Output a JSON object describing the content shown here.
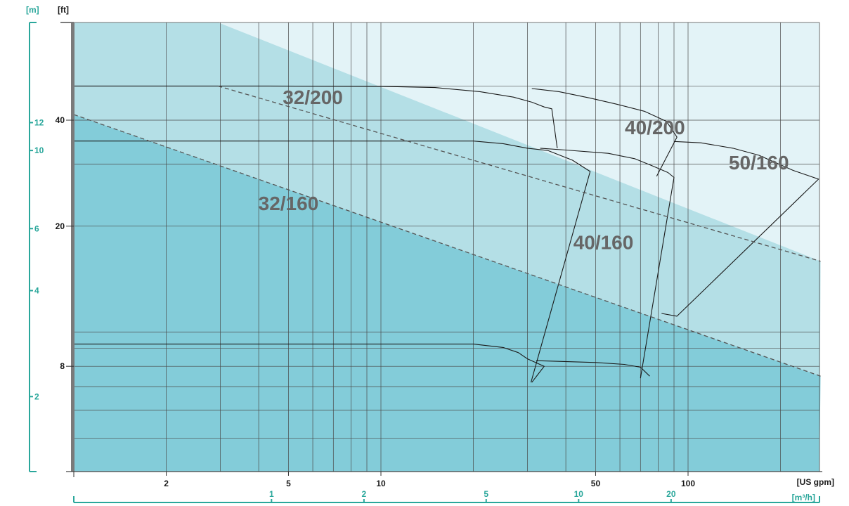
{
  "colors": {
    "zone_low": "#83ccd9",
    "zone_mid": "#b4dfe6",
    "zone_high": "#e3f3f7",
    "grid": "#4a4a4a",
    "curve": "#1a1a1a",
    "boundary": "#555555",
    "teal_axis": "#2aa79b",
    "axis_bar": "#7a7a7a",
    "label_text": "#666666",
    "tick_text": "#1a1a1a"
  },
  "chart_data": {
    "type": "line",
    "x_scale": "log",
    "y_scale": "log",
    "grid": true,
    "legend": "none",
    "x_primary": {
      "unit_label": "[US gpm]",
      "range": [
        1,
        270
      ],
      "ticks": [
        2,
        5,
        10,
        50,
        100
      ]
    },
    "x_secondary": {
      "unit_label": "[m³/h]",
      "ticks": [
        1,
        2,
        5,
        10,
        20
      ]
    },
    "y_primary": {
      "unit_label": "[ft]",
      "range": [
        4,
        50
      ],
      "ticks": [
        8,
        20,
        40
      ]
    },
    "y_secondary": {
      "unit_label": "[m]",
      "ticks": [
        2,
        4,
        6,
        10,
        12
      ]
    },
    "tick_text": {
      "ft": [
        "8",
        "20",
        "40"
      ],
      "m": [
        "2",
        "4",
        "6",
        "10",
        "12"
      ],
      "gpm": [
        "2",
        "5",
        "10",
        "50",
        "100"
      ],
      "m3h": [
        "1",
        "2",
        "5",
        "10",
        "20"
      ]
    },
    "region_labels": [
      {
        "text": "32/200",
        "gpm": 6,
        "ft": 44.5
      },
      {
        "text": "40/200",
        "gpm": 78,
        "ft": 36.5
      },
      {
        "text": "50/160",
        "gpm": 170,
        "ft": 29
      },
      {
        "text": "32/160",
        "gpm": 5,
        "ft": 22.2
      },
      {
        "text": "40/160",
        "gpm": 53,
        "ft": 17.2
      }
    ],
    "boundaries": [
      {
        "name": "upper-boundary",
        "points": [
          [
            2.95,
            50
          ],
          [
            270,
            15.9
          ]
        ]
      },
      {
        "name": "lower-boundary",
        "points": [
          [
            1,
            41.5
          ],
          [
            270,
            7.5
          ]
        ]
      }
    ],
    "series": [
      {
        "points": [
          [
            1,
            50
          ],
          [
            3.6,
            50
          ],
          [
            10,
            49.9
          ],
          [
            15,
            49.5
          ],
          [
            21,
            48.2
          ],
          [
            27,
            46.5
          ],
          [
            31,
            45
          ],
          [
            34,
            43.6
          ],
          [
            36,
            43.1
          ],
          [
            37.5,
            33.3
          ]
        ]
      },
      {
        "points": [
          [
            1,
            34.9
          ],
          [
            20,
            34.9
          ],
          [
            25,
            34.3
          ],
          [
            30,
            33.3
          ],
          [
            35,
            32.8
          ],
          [
            42,
            30.8
          ],
          [
            48,
            28.6
          ],
          [
            30.8,
            7.2
          ]
        ]
      },
      {
        "points": [
          [
            1,
            9.25
          ],
          [
            20,
            9.25
          ],
          [
            25,
            9.05
          ],
          [
            28,
            8.75
          ],
          [
            30,
            8.4
          ],
          [
            34,
            8
          ],
          [
            31,
            7.2
          ]
        ]
      },
      {
        "points": [
          [
            31,
            49.2
          ],
          [
            38,
            48.2
          ],
          [
            48,
            46.2
          ],
          [
            58,
            44.5
          ],
          [
            72,
            42.4
          ],
          [
            85,
            39.7
          ],
          [
            92,
            35.8
          ],
          [
            79,
            27.7
          ]
        ]
      },
      {
        "points": [
          [
            33,
            33.3
          ],
          [
            40,
            32.9
          ],
          [
            55,
            32.2
          ],
          [
            67,
            31.1
          ],
          [
            77,
            29.6
          ],
          [
            86,
            28.4
          ],
          [
            90,
            27.5
          ],
          [
            70,
            7.4
          ]
        ]
      },
      {
        "points": [
          [
            32,
            8.3
          ],
          [
            50,
            8.2
          ],
          [
            62,
            8.1
          ],
          [
            70,
            7.95
          ],
          [
            75,
            7.5
          ]
        ]
      },
      {
        "points": [
          [
            90,
            34.8
          ],
          [
            110,
            34.5
          ],
          [
            140,
            33.3
          ],
          [
            170,
            31.8
          ],
          [
            220,
            28.8
          ],
          [
            266,
            27.2
          ],
          [
            92,
            11.1
          ],
          [
            82,
            11.3
          ]
        ]
      }
    ]
  }
}
